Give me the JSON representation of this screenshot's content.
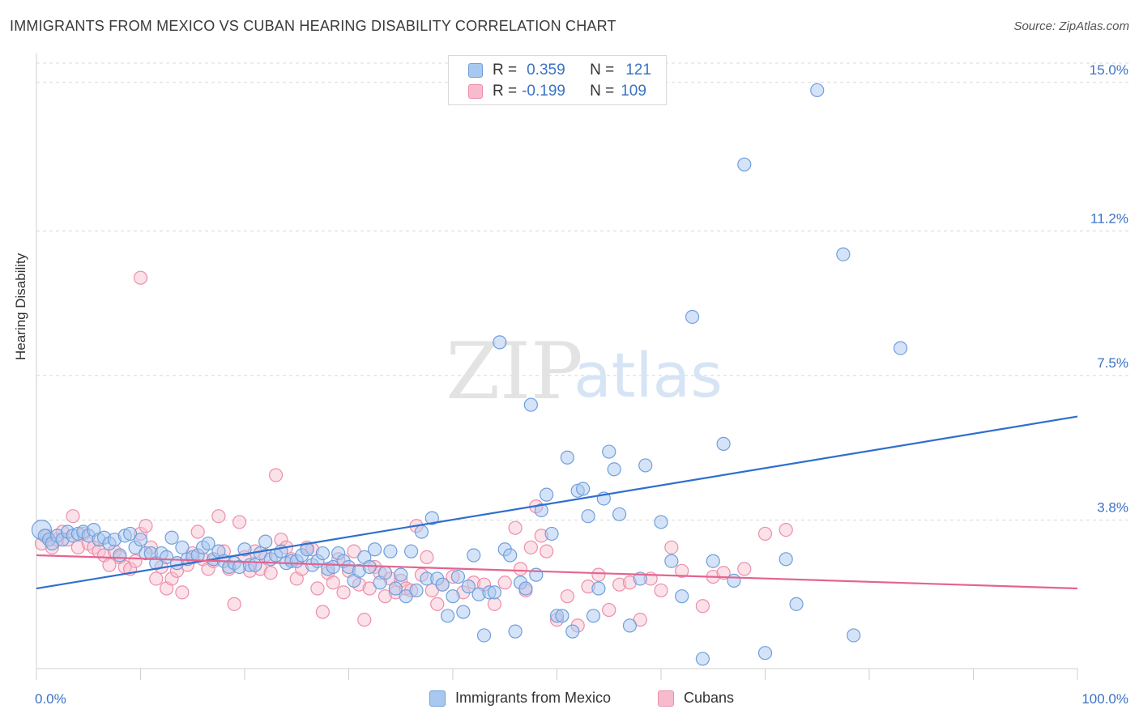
{
  "header": {
    "title": "IMMIGRANTS FROM MEXICO VS CUBAN HEARING DISABILITY CORRELATION CHART",
    "source": "Source: ZipAtlas.com"
  },
  "watermark": {
    "zip": "ZIP",
    "atlas": "atlas"
  },
  "legend": {
    "series": [
      {
        "r_label": "R =",
        "r_value": "0.359",
        "n_label": "N =",
        "n_value": "121"
      },
      {
        "r_label": "R =",
        "r_value": "-0.199",
        "n_label": "N =",
        "n_value": "109"
      }
    ]
  },
  "bottom_legend": {
    "mexico": "Immigrants from Mexico",
    "cubans": "Cubans"
  },
  "colors": {
    "blue_fill": "#a9c8ef",
    "blue_stroke": "#6f9fdc",
    "blue_line": "#2f6fcd",
    "pink_fill": "#f6bccd",
    "pink_stroke": "#ec8eab",
    "pink_line": "#e4648f",
    "tick_label": "#3a72c4",
    "grid": "#d8d8d8"
  },
  "chart_data": {
    "type": "scatter",
    "title": "IMMIGRANTS FROM MEXICO VS CUBAN HEARING DISABILITY CORRELATION CHART",
    "xlabel": "",
    "ylabel": "Hearing Disability",
    "xlim": [
      0,
      100
    ],
    "ylim": [
      0,
      15.7
    ],
    "x_tick_labels": [
      "0.0%",
      "100.0%"
    ],
    "y_ticks": [
      3.8,
      7.5,
      11.2,
      15.0
    ],
    "y_tick_labels": [
      "3.8%",
      "7.5%",
      "11.2%",
      "15.0%"
    ],
    "grid": "horizontal dashed",
    "legend_position": "top-center",
    "series": [
      {
        "name": "Immigrants from Mexico",
        "color": "#6f9fdc",
        "trend": {
          "x": [
            0,
            100
          ],
          "y": [
            2.05,
            6.45
          ]
        },
        "points": [
          [
            0.5,
            3.55
          ],
          [
            0.8,
            3.4
          ],
          [
            1.2,
            3.3
          ],
          [
            1.5,
            3.2
          ],
          [
            2.0,
            3.4
          ],
          [
            2.5,
            3.3
          ],
          [
            3.0,
            3.5
          ],
          [
            3.5,
            3.4
          ],
          [
            4.0,
            3.45
          ],
          [
            4.5,
            3.5
          ],
          [
            5.0,
            3.4
          ],
          [
            5.5,
            3.55
          ],
          [
            6.0,
            3.3
          ],
          [
            6.5,
            3.35
          ],
          [
            7.0,
            3.2
          ],
          [
            7.5,
            3.3
          ],
          [
            8.0,
            2.9
          ],
          [
            8.5,
            3.4
          ],
          [
            9.0,
            3.45
          ],
          [
            9.5,
            3.1
          ],
          [
            10.0,
            3.3
          ],
          [
            10.5,
            2.95
          ],
          [
            11.0,
            2.95
          ],
          [
            11.5,
            2.7
          ],
          [
            12.0,
            2.95
          ],
          [
            12.5,
            2.85
          ],
          [
            13.0,
            3.35
          ],
          [
            13.5,
            2.7
          ],
          [
            14.0,
            3.1
          ],
          [
            14.5,
            2.8
          ],
          [
            15.0,
            2.85
          ],
          [
            15.5,
            2.9
          ],
          [
            16.0,
            3.1
          ],
          [
            16.5,
            3.2
          ],
          [
            17.0,
            2.8
          ],
          [
            17.5,
            3.0
          ],
          [
            18.0,
            2.75
          ],
          [
            18.5,
            2.6
          ],
          [
            19.0,
            2.7
          ],
          [
            19.5,
            2.6
          ],
          [
            20.0,
            3.05
          ],
          [
            20.5,
            2.65
          ],
          [
            21.0,
            2.65
          ],
          [
            21.5,
            2.95
          ],
          [
            22.0,
            3.25
          ],
          [
            22.5,
            2.8
          ],
          [
            23.0,
            2.9
          ],
          [
            23.5,
            3.0
          ],
          [
            24.0,
            2.7
          ],
          [
            24.5,
            2.75
          ],
          [
            25.0,
            2.75
          ],
          [
            25.5,
            2.9
          ],
          [
            26.0,
            3.05
          ],
          [
            26.5,
            2.65
          ],
          [
            27.0,
            2.75
          ],
          [
            27.5,
            2.95
          ],
          [
            28.0,
            2.55
          ],
          [
            28.5,
            2.6
          ],
          [
            29.0,
            2.95
          ],
          [
            29.5,
            2.75
          ],
          [
            30.0,
            2.6
          ],
          [
            30.5,
            2.25
          ],
          [
            31.0,
            2.5
          ],
          [
            31.5,
            2.85
          ],
          [
            32.0,
            2.6
          ],
          [
            32.5,
            3.05
          ],
          [
            33.0,
            2.2
          ],
          [
            33.5,
            2.45
          ],
          [
            34.0,
            3.0
          ],
          [
            34.5,
            2.05
          ],
          [
            35.0,
            2.4
          ],
          [
            35.5,
            1.85
          ],
          [
            36.0,
            3.0
          ],
          [
            36.5,
            2.0
          ],
          [
            37.0,
            3.5
          ],
          [
            37.5,
            2.3
          ],
          [
            38.0,
            3.85
          ],
          [
            38.5,
            2.3
          ],
          [
            39.0,
            2.15
          ],
          [
            39.5,
            1.35
          ],
          [
            40.0,
            1.85
          ],
          [
            40.5,
            2.35
          ],
          [
            41.0,
            1.45
          ],
          [
            41.5,
            2.1
          ],
          [
            42.0,
            2.9
          ],
          [
            42.5,
            1.9
          ],
          [
            43.0,
            0.85
          ],
          [
            43.5,
            1.95
          ],
          [
            44.0,
            1.95
          ],
          [
            44.5,
            8.35
          ],
          [
            45.0,
            3.05
          ],
          [
            45.5,
            2.9
          ],
          [
            46.0,
            0.95
          ],
          [
            46.5,
            2.2
          ],
          [
            47.0,
            2.05
          ],
          [
            47.5,
            6.75
          ],
          [
            48.0,
            2.4
          ],
          [
            48.5,
            4.05
          ],
          [
            49.0,
            4.45
          ],
          [
            49.5,
            3.45
          ],
          [
            50.0,
            1.35
          ],
          [
            50.5,
            1.35
          ],
          [
            51.0,
            5.4
          ],
          [
            51.5,
            0.95
          ],
          [
            52.0,
            4.55
          ],
          [
            52.5,
            4.6
          ],
          [
            53.0,
            3.9
          ],
          [
            53.5,
            1.35
          ],
          [
            54.0,
            2.05
          ],
          [
            54.5,
            4.35
          ],
          [
            55.0,
            5.55
          ],
          [
            55.5,
            5.1
          ],
          [
            56.0,
            3.95
          ],
          [
            57.0,
            1.1
          ],
          [
            58.0,
            2.3
          ],
          [
            58.5,
            5.2
          ],
          [
            60.0,
            3.75
          ],
          [
            61.0,
            2.75
          ],
          [
            62.0,
            1.85
          ],
          [
            63.0,
            9.0
          ],
          [
            64.0,
            0.25
          ],
          [
            65.0,
            2.75
          ],
          [
            66.0,
            5.75
          ],
          [
            67.0,
            2.25
          ],
          [
            68.0,
            12.9
          ],
          [
            70.0,
            0.4
          ],
          [
            72.0,
            2.8
          ],
          [
            73.0,
            1.65
          ],
          [
            75.0,
            14.8
          ],
          [
            77.5,
            10.6
          ],
          [
            78.5,
            0.85
          ],
          [
            83.0,
            8.2
          ]
        ]
      },
      {
        "name": "Cubans",
        "color": "#ec8eab",
        "trend": {
          "x": [
            0,
            100
          ],
          "y": [
            2.9,
            2.05
          ]
        },
        "points": [
          [
            0.5,
            3.2
          ],
          [
            1.0,
            3.4
          ],
          [
            1.5,
            3.1
          ],
          [
            2.0,
            3.3
          ],
          [
            2.5,
            3.5
          ],
          [
            3.0,
            3.3
          ],
          [
            3.5,
            3.9
          ],
          [
            4.0,
            3.1
          ],
          [
            4.5,
            3.45
          ],
          [
            5.0,
            3.2
          ],
          [
            5.5,
            3.1
          ],
          [
            6.0,
            3.0
          ],
          [
            6.5,
            2.9
          ],
          [
            7.0,
            2.65
          ],
          [
            7.5,
            3.0
          ],
          [
            8.0,
            2.85
          ],
          [
            8.5,
            2.6
          ],
          [
            9.0,
            2.55
          ],
          [
            9.5,
            2.75
          ],
          [
            10.0,
            3.45
          ],
          [
            10.5,
            3.65
          ],
          [
            11.0,
            3.1
          ],
          [
            11.5,
            2.3
          ],
          [
            12.0,
            2.6
          ],
          [
            12.5,
            2.05
          ],
          [
            13.0,
            2.3
          ],
          [
            13.5,
            2.5
          ],
          [
            14.0,
            1.95
          ],
          [
            14.5,
            2.65
          ],
          [
            15.0,
            2.95
          ],
          [
            15.5,
            3.5
          ],
          [
            16.0,
            2.8
          ],
          [
            16.5,
            2.55
          ],
          [
            17.0,
            2.75
          ],
          [
            17.5,
            3.9
          ],
          [
            18.0,
            3.0
          ],
          [
            18.5,
            2.55
          ],
          [
            19.0,
            1.65
          ],
          [
            19.5,
            3.75
          ],
          [
            20.0,
            2.85
          ],
          [
            20.5,
            2.5
          ],
          [
            21.0,
            3.0
          ],
          [
            21.5,
            2.55
          ],
          [
            22.0,
            2.9
          ],
          [
            22.5,
            2.45
          ],
          [
            23.0,
            4.95
          ],
          [
            23.5,
            3.3
          ],
          [
            24.0,
            3.1
          ],
          [
            24.5,
            2.8
          ],
          [
            25.0,
            2.3
          ],
          [
            25.5,
            2.55
          ],
          [
            26.0,
            3.1
          ],
          [
            26.5,
            3.05
          ],
          [
            27.0,
            2.05
          ],
          [
            27.5,
            1.45
          ],
          [
            28.0,
            2.45
          ],
          [
            28.5,
            2.2
          ],
          [
            29.0,
            2.8
          ],
          [
            29.5,
            1.95
          ],
          [
            30.0,
            2.5
          ],
          [
            30.5,
            3.0
          ],
          [
            31.0,
            2.15
          ],
          [
            31.5,
            1.25
          ],
          [
            32.0,
            2.05
          ],
          [
            32.5,
            2.6
          ],
          [
            33.0,
            2.45
          ],
          [
            33.5,
            1.85
          ],
          [
            34.0,
            2.3
          ],
          [
            34.5,
            1.95
          ],
          [
            35.0,
            2.25
          ],
          [
            35.5,
            2.05
          ],
          [
            36.0,
            2.0
          ],
          [
            36.5,
            3.65
          ],
          [
            37.0,
            2.4
          ],
          [
            37.5,
            2.85
          ],
          [
            38.0,
            2.0
          ],
          [
            38.5,
            1.65
          ],
          [
            39.0,
            2.15
          ],
          [
            40.0,
            2.35
          ],
          [
            41.0,
            1.95
          ],
          [
            42.0,
            2.2
          ],
          [
            43.0,
            2.15
          ],
          [
            44.0,
            1.65
          ],
          [
            45.0,
            2.2
          ],
          [
            46.0,
            3.6
          ],
          [
            46.5,
            2.55
          ],
          [
            47.0,
            2.0
          ],
          [
            47.5,
            3.1
          ],
          [
            48.0,
            4.15
          ],
          [
            48.5,
            3.4
          ],
          [
            49.0,
            3.0
          ],
          [
            50.0,
            1.25
          ],
          [
            51.0,
            1.85
          ],
          [
            52.0,
            1.1
          ],
          [
            53.0,
            2.1
          ],
          [
            54.0,
            2.4
          ],
          [
            55.0,
            1.5
          ],
          [
            56.0,
            2.15
          ],
          [
            57.0,
            2.2
          ],
          [
            58.0,
            1.25
          ],
          [
            59.0,
            2.3
          ],
          [
            60.0,
            2.0
          ],
          [
            61.0,
            3.1
          ],
          [
            62.0,
            2.5
          ],
          [
            64.0,
            1.6
          ],
          [
            65.0,
            2.35
          ],
          [
            66.0,
            2.45
          ],
          [
            68.0,
            2.55
          ],
          [
            70.0,
            3.45
          ],
          [
            72.0,
            3.55
          ],
          [
            10.0,
            10.0
          ]
        ]
      }
    ]
  }
}
